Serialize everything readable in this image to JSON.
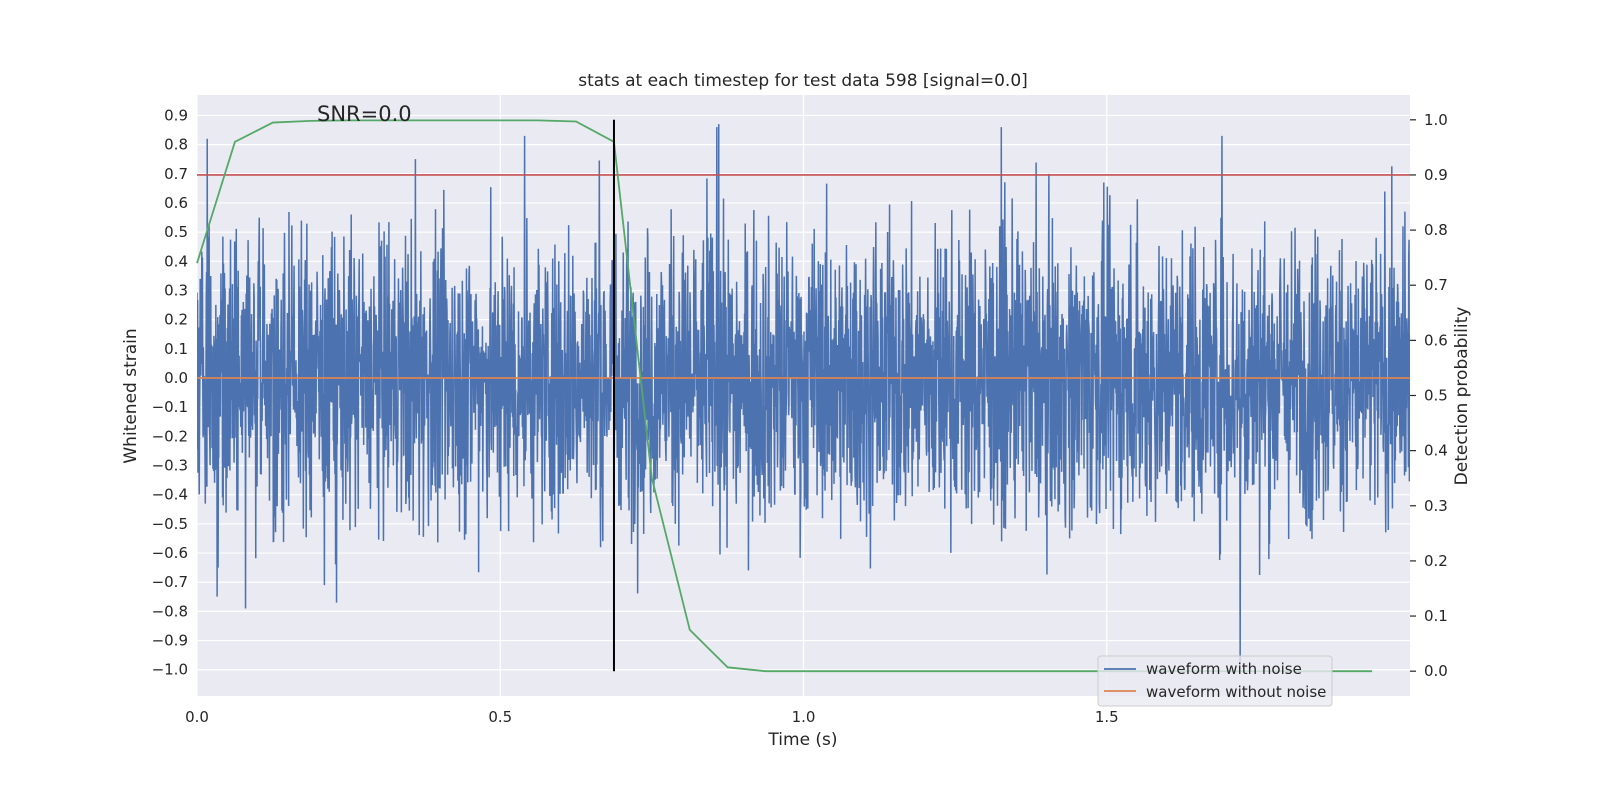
{
  "chart_data": {
    "type": "line",
    "title": "stats at each timestep for test data 598 [signal=0.0]",
    "xlabel": "Time (s)",
    "ylabel_left": "Whitened strain",
    "ylabel_right": "Detection probability",
    "xlim": [
      0.0,
      2.0
    ],
    "ylim_left": [
      -1.09,
      0.97
    ],
    "ylim_right": [
      -0.045,
      1.045
    ],
    "xticks": [
      0.0,
      0.5,
      1.0,
      1.5
    ],
    "xtick_labels": [
      "0.0",
      "0.5",
      "1.0",
      "1.5"
    ],
    "yticks_left": [
      0.9,
      0.8,
      0.7,
      0.6,
      0.5,
      0.4,
      0.3,
      0.2,
      0.1,
      0.0,
      -0.1,
      -0.2,
      -0.3,
      -0.4,
      -0.5,
      -0.6,
      -0.7,
      -0.8,
      -0.9,
      -1.0
    ],
    "ytick_labels_left": [
      "0.9",
      "0.8",
      "0.7",
      "0.6",
      "0.5",
      "0.4",
      "0.3",
      "0.2",
      "0.1",
      "0.0",
      "−0.1",
      "−0.2",
      "−0.3",
      "−0.4",
      "−0.5",
      "−0.6",
      "−0.7",
      "−0.8",
      "−0.9",
      "−1.0"
    ],
    "yticks_right": [
      1.0,
      0.9,
      0.8,
      0.7,
      0.6,
      0.5,
      0.4,
      0.3,
      0.2,
      0.1,
      0.0
    ],
    "ytick_labels_right": [
      "1.0",
      "0.9",
      "0.8",
      "0.7",
      "0.6",
      "0.5",
      "0.4",
      "0.3",
      "0.2",
      "0.1",
      "0.0"
    ],
    "grid": true,
    "background": "#eaeaf2",
    "annotation": "SNR=0.0",
    "legend_placement": "lower-right",
    "series": [
      {
        "name": "waveform with noise",
        "color": "#4c72b0",
        "axis": "left",
        "style": "dense noise, approx. sampled at 2048 Hz",
        "x_range": [
          0.0,
          2.0
        ],
        "y_range_approx": [
          -0.98,
          0.87
        ],
        "notable_peaks": [
          [
            0.017,
            0.82
          ],
          [
            0.035,
            -0.65
          ],
          [
            0.08,
            -0.79
          ],
          [
            0.21,
            -0.71
          ],
          [
            0.23,
            -0.77
          ],
          [
            0.36,
            0.75
          ],
          [
            0.54,
            0.83
          ],
          [
            0.86,
            0.87
          ],
          [
            1.72,
            -0.98
          ],
          [
            1.69,
            0.83
          ]
        ]
      },
      {
        "name": "waveform without noise",
        "color": "#dd8452",
        "axis": "left",
        "x": [
          0.0,
          2.0
        ],
        "y": [
          0.0,
          0.0
        ]
      },
      {
        "color": "#55a868",
        "axis": "right",
        "x": [
          0.0,
          0.0625,
          0.125,
          0.1875,
          0.25,
          0.3125,
          0.375,
          0.4375,
          0.5,
          0.5625,
          0.625,
          0.6875,
          0.75,
          0.8125,
          0.875,
          0.9375,
          1.0,
          1.0625,
          1.125,
          1.1875,
          1.25,
          1.3125,
          1.375,
          1.4375,
          1.5,
          1.5625,
          1.625,
          1.6875,
          1.75,
          1.8125,
          1.875,
          1.9375
        ],
        "y": [
          0.74,
          0.96,
          0.995,
          0.998,
          0.999,
          0.999,
          0.999,
          0.999,
          0.999,
          0.999,
          0.997,
          0.96,
          0.35,
          0.075,
          0.007,
          0.0,
          0.0,
          0.0,
          0.0,
          0.0,
          0.0,
          0.0,
          0.0,
          0.0,
          0.0,
          0.0,
          0.0,
          0.0,
          0.0,
          0.0,
          0.0,
          0.0
        ]
      }
    ],
    "threshold_line": {
      "color": "#c44e52",
      "axis": "right",
      "y": 0.9
    },
    "vertical_marker": {
      "color": "#000000",
      "x": 0.6875,
      "y_right_range": [
        0.0,
        1.0
      ]
    }
  }
}
